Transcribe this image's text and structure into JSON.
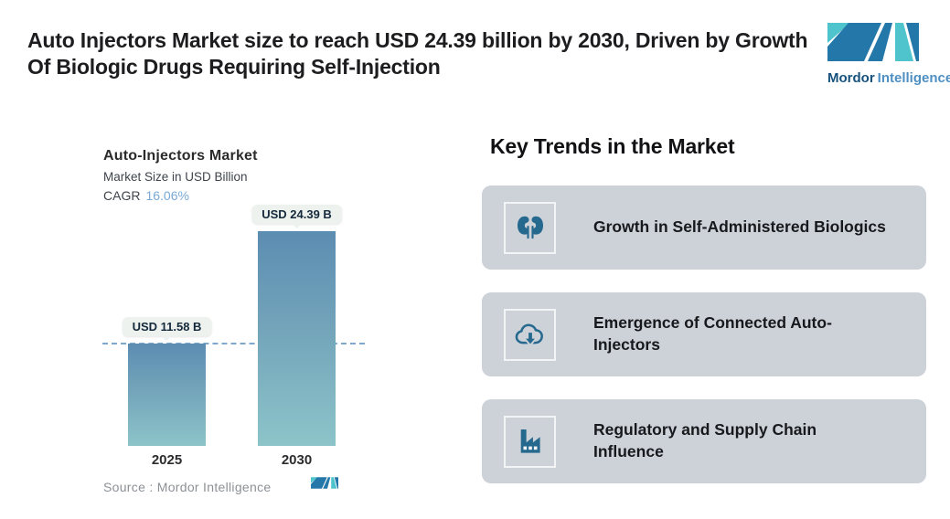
{
  "header": {
    "title": "Auto Injectors Market size to reach USD 24.39 billion by 2030, Driven by Growth Of Biologic Drugs Requiring Self-Injection"
  },
  "brand": {
    "primary": "Mordor",
    "secondary": "Intelligence"
  },
  "chart": {
    "title": "Auto-Injectors Market",
    "subtitle": "Market Size in USD Billion",
    "cagr_label": "CAGR",
    "cagr_value": "16.06%",
    "bars": [
      {
        "year": "2025",
        "label": "USD 11.58 B",
        "value": 11.58
      },
      {
        "year": "2030",
        "label": "USD 24.39 B",
        "value": 24.39
      }
    ],
    "source": "Source :  Mordor Intelligence"
  },
  "chart_data": {
    "type": "bar",
    "title": "Auto-Injectors Market",
    "subtitle": "Market Size in USD Billion",
    "cagr": "16.06%",
    "categories": [
      "2025",
      "2030"
    ],
    "values": [
      11.58,
      24.39
    ],
    "data_labels": [
      "USD 11.58 B",
      "USD 24.39 B"
    ],
    "ylabel": "Market Size (USD Billion)",
    "ylim": [
      0,
      26
    ],
    "grid": false,
    "legend": "none",
    "annotations": [
      "horizontal dashed reference line at 2025 value (USD 11.58 B)"
    ],
    "source": "Mordor Intelligence"
  },
  "trends": {
    "heading": "Key Trends in the Market",
    "items": [
      {
        "icon": "kidneys-icon",
        "label": "Growth in Self-Administered Biologics"
      },
      {
        "icon": "cloud-download-icon",
        "label": "Emergence of Connected Auto-Injectors"
      },
      {
        "icon": "factory-icon",
        "label": "Regulatory and Supply Chain Influence"
      }
    ]
  },
  "colors": {
    "brand_blue": "#2478a9",
    "brand_teal": "#4fc4cc",
    "bar_gradient_top": "#5c8db2",
    "bar_gradient_bottom": "#8cc4c9",
    "dashed_line": "#7fa8cf",
    "cagr_value": "#7aa9d6",
    "callout_bg": "#edf2ef",
    "card_bg": "#cdd2d9",
    "icon_color": "#26698e",
    "source_text": "#8c9196"
  }
}
